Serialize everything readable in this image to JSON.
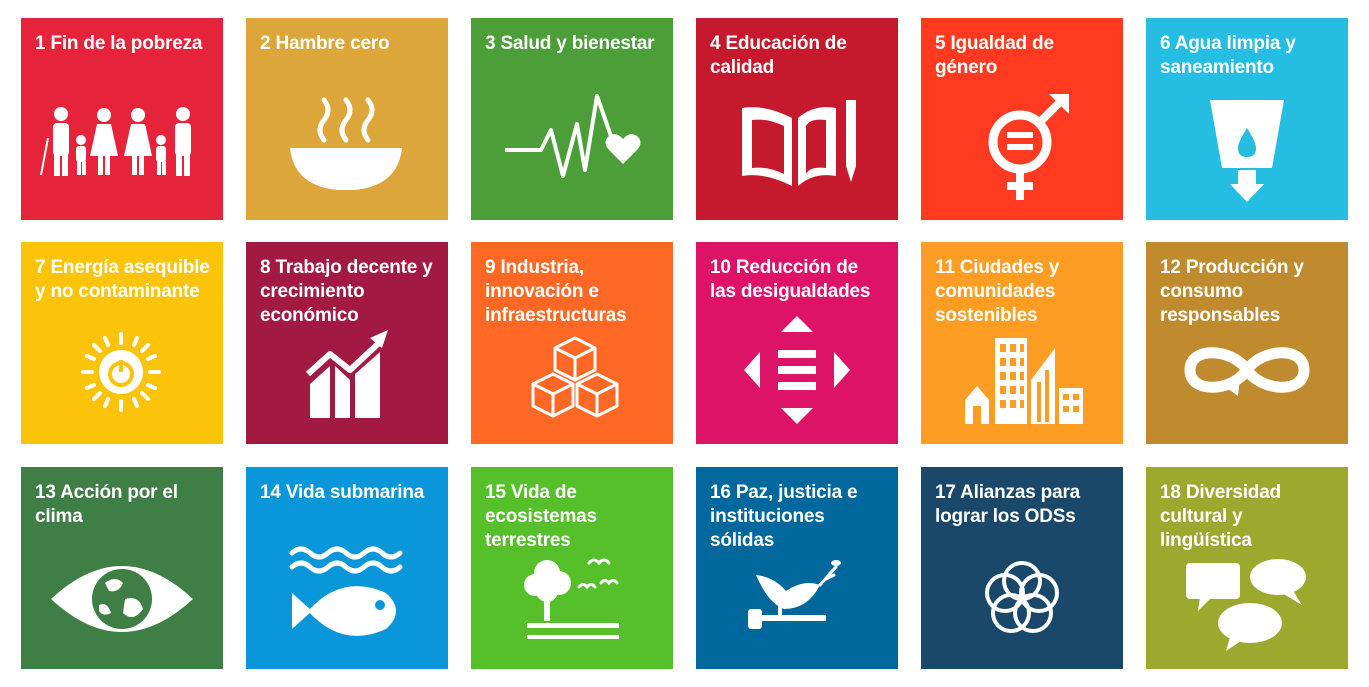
{
  "tiles": [
    {
      "label": "1 Fin de la pobreza",
      "icon": "family-icon",
      "color": "#E5243B"
    },
    {
      "label": "2 Hambre cero",
      "icon": "bowl-icon",
      "color": "#DDA63A"
    },
    {
      "label": "3 Salud y bienestar",
      "icon": "heartbeat-icon",
      "color": "#4C9F38"
    },
    {
      "label": "4 Educación de calidad",
      "icon": "book-pencil-icon",
      "color": "#C5192D"
    },
    {
      "label": "5 Igualdad de género",
      "icon": "gender-equality-icon",
      "color": "#FF3A21"
    },
    {
      "label": "6 Agua limpia y saneamiento",
      "icon": "water-glass-icon",
      "color": "#26BDE2"
    },
    {
      "label": "7 Energía asequible y no contaminante",
      "icon": "sun-power-icon",
      "color": "#FCC30B"
    },
    {
      "label": "8 Trabajo decente y crecimiento económico",
      "icon": "growth-chart-icon",
      "color": "#A21942"
    },
    {
      "label": "9 Industria, innovación e infraestructuras",
      "icon": "cubes-icon",
      "color": "#FD6925"
    },
    {
      "label": "10 Reducción de las desigualdades",
      "icon": "equal-arrows-icon",
      "color": "#DD1367"
    },
    {
      "label": "11 Ciudades y comunidades sostenibles",
      "icon": "city-icon",
      "color": "#FD9D24"
    },
    {
      "label": "12 Producción y consumo responsables",
      "icon": "infinity-icon",
      "color": "#BF8B2E"
    },
    {
      "label": "13 Acción por el clima",
      "icon": "eye-earth-icon",
      "color": "#3F7E44"
    },
    {
      "label": "14 Vida submarina",
      "icon": "fish-waves-icon",
      "color": "#0A97D9"
    },
    {
      "label": "15 Vida de ecosistemas terrestres",
      "icon": "tree-birds-icon",
      "color": "#56C02B"
    },
    {
      "label": "16 Paz, justicia e instituciones sólidas",
      "icon": "dove-gavel-icon",
      "color": "#00689D"
    },
    {
      "label": "17 Alianzas para lograr los ODSs",
      "icon": "rings-icon",
      "color": "#19486A"
    },
    {
      "label": "18 Diversidad cultural y lingüística",
      "icon": "speech-bubbles-icon",
      "color": "#9BA92F"
    }
  ]
}
